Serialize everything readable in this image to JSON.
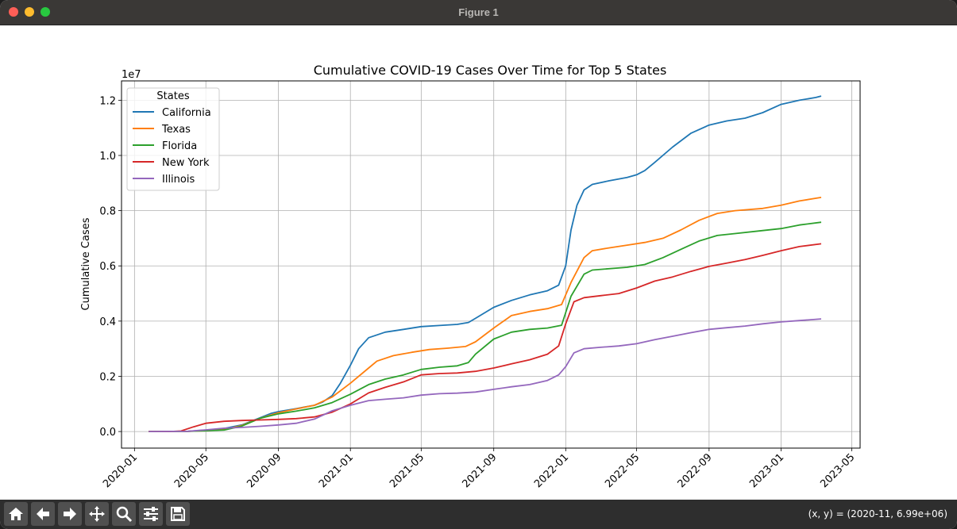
{
  "window": {
    "title": "Figure 1",
    "coords_readout": "(x, y) = (2020-11, 6.99e+06)"
  },
  "toolbar": {
    "buttons": [
      "home-icon",
      "back-icon",
      "forward-icon",
      "pan-icon",
      "zoom-icon",
      "configure-subplots-icon",
      "save-icon"
    ]
  },
  "chart_data": {
    "type": "line",
    "title": "Cumulative COVID-19 Cases Over Time for Top 5 States",
    "xlabel": "",
    "ylabel": "Cumulative Cases",
    "y_offset_label": "1e7",
    "xlim": [
      "2019-12-10",
      "2023-05-15"
    ],
    "ylim": [
      -600000,
      12700000
    ],
    "grid": true,
    "legend": {
      "title": "States",
      "placement": "top-left"
    },
    "x_ticks": [
      "2020-01",
      "2020-05",
      "2020-09",
      "2021-01",
      "2021-05",
      "2021-09",
      "2022-01",
      "2022-05",
      "2022-09",
      "2023-01",
      "2023-05"
    ],
    "y_ticks": [
      {
        "value": 0,
        "label": "0.0"
      },
      {
        "value": 2000000,
        "label": "0.2"
      },
      {
        "value": 4000000,
        "label": "0.4"
      },
      {
        "value": 6000000,
        "label": "0.6"
      },
      {
        "value": 8000000,
        "label": "0.8"
      },
      {
        "value": 10000000,
        "label": "1.0"
      },
      {
        "value": 12000000,
        "label": "1.2"
      }
    ],
    "series": [
      {
        "name": "California",
        "color": "#1f77b4",
        "points": [
          [
            "2020-01-25",
            0
          ],
          [
            "2020-04-01",
            8000
          ],
          [
            "2020-05-01",
            50000
          ],
          [
            "2020-06-01",
            110000
          ],
          [
            "2020-07-01",
            240000
          ],
          [
            "2020-08-01",
            500000
          ],
          [
            "2020-08-20",
            660000
          ],
          [
            "2020-09-01",
            720000
          ],
          [
            "2020-10-01",
            830000
          ],
          [
            "2020-11-01",
            950000
          ],
          [
            "2020-11-15",
            1070000
          ],
          [
            "2020-12-01",
            1300000
          ],
          [
            "2020-12-15",
            1750000
          ],
          [
            "2021-01-01",
            2400000
          ],
          [
            "2021-01-15",
            3000000
          ],
          [
            "2021-02-01",
            3400000
          ],
          [
            "2021-03-01",
            3600000
          ],
          [
            "2021-04-01",
            3700000
          ],
          [
            "2021-05-01",
            3800000
          ],
          [
            "2021-06-01",
            3840000
          ],
          [
            "2021-07-01",
            3880000
          ],
          [
            "2021-07-20",
            3950000
          ],
          [
            "2021-08-01",
            4100000
          ],
          [
            "2021-09-01",
            4500000
          ],
          [
            "2021-10-01",
            4750000
          ],
          [
            "2021-11-01",
            4950000
          ],
          [
            "2021-12-01",
            5100000
          ],
          [
            "2021-12-20",
            5300000
          ],
          [
            "2022-01-01",
            6000000
          ],
          [
            "2022-01-10",
            7300000
          ],
          [
            "2022-01-20",
            8200000
          ],
          [
            "2022-02-01",
            8750000
          ],
          [
            "2022-02-15",
            8950000
          ],
          [
            "2022-03-15",
            9080000
          ],
          [
            "2022-04-15",
            9200000
          ],
          [
            "2022-05-01",
            9300000
          ],
          [
            "2022-05-15",
            9450000
          ],
          [
            "2022-06-01",
            9750000
          ],
          [
            "2022-07-01",
            10300000
          ],
          [
            "2022-08-01",
            10800000
          ],
          [
            "2022-09-01",
            11100000
          ],
          [
            "2022-10-01",
            11250000
          ],
          [
            "2022-11-01",
            11350000
          ],
          [
            "2022-12-01",
            11550000
          ],
          [
            "2023-01-01",
            11850000
          ],
          [
            "2023-02-01",
            12000000
          ],
          [
            "2023-03-01",
            12100000
          ],
          [
            "2023-03-10",
            12150000
          ]
        ]
      },
      {
        "name": "Texas",
        "color": "#ff7f0e",
        "points": [
          [
            "2020-01-25",
            0
          ],
          [
            "2020-04-01",
            5000
          ],
          [
            "2020-05-01",
            30000
          ],
          [
            "2020-06-01",
            70000
          ],
          [
            "2020-07-01",
            220000
          ],
          [
            "2020-08-01",
            480000
          ],
          [
            "2020-09-01",
            680000
          ],
          [
            "2020-10-01",
            820000
          ],
          [
            "2020-11-01",
            950000
          ],
          [
            "2020-12-01",
            1250000
          ],
          [
            "2021-01-01",
            1750000
          ],
          [
            "2021-02-01",
            2300000
          ],
          [
            "2021-02-15",
            2550000
          ],
          [
            "2021-03-15",
            2750000
          ],
          [
            "2021-04-15",
            2870000
          ],
          [
            "2021-05-15",
            2970000
          ],
          [
            "2021-06-15",
            3020000
          ],
          [
            "2021-07-15",
            3080000
          ],
          [
            "2021-08-01",
            3250000
          ],
          [
            "2021-09-01",
            3750000
          ],
          [
            "2021-10-01",
            4200000
          ],
          [
            "2021-11-01",
            4350000
          ],
          [
            "2021-12-01",
            4450000
          ],
          [
            "2021-12-25",
            4600000
          ],
          [
            "2022-01-10",
            5400000
          ],
          [
            "2022-02-01",
            6300000
          ],
          [
            "2022-02-15",
            6550000
          ],
          [
            "2022-03-15",
            6650000
          ],
          [
            "2022-04-15",
            6750000
          ],
          [
            "2022-05-15",
            6850000
          ],
          [
            "2022-06-15",
            7000000
          ],
          [
            "2022-07-15",
            7300000
          ],
          [
            "2022-08-15",
            7650000
          ],
          [
            "2022-09-15",
            7900000
          ],
          [
            "2022-10-15",
            8000000
          ],
          [
            "2022-12-01",
            8080000
          ],
          [
            "2023-01-01",
            8200000
          ],
          [
            "2023-02-01",
            8350000
          ],
          [
            "2023-03-10",
            8480000
          ]
        ]
      },
      {
        "name": "Florida",
        "color": "#2ca02c",
        "points": [
          [
            "2020-01-25",
            0
          ],
          [
            "2020-04-01",
            5000
          ],
          [
            "2020-05-01",
            30000
          ],
          [
            "2020-06-01",
            55000
          ],
          [
            "2020-07-01",
            200000
          ],
          [
            "2020-08-01",
            480000
          ],
          [
            "2020-09-01",
            640000
          ],
          [
            "2020-10-01",
            740000
          ],
          [
            "2020-11-01",
            860000
          ],
          [
            "2020-12-01",
            1050000
          ],
          [
            "2021-01-01",
            1350000
          ],
          [
            "2021-02-01",
            1700000
          ],
          [
            "2021-03-01",
            1900000
          ],
          [
            "2021-04-01",
            2050000
          ],
          [
            "2021-05-01",
            2250000
          ],
          [
            "2021-06-01",
            2330000
          ],
          [
            "2021-07-01",
            2380000
          ],
          [
            "2021-07-20",
            2500000
          ],
          [
            "2021-08-01",
            2800000
          ],
          [
            "2021-09-01",
            3350000
          ],
          [
            "2021-10-01",
            3600000
          ],
          [
            "2021-11-01",
            3700000
          ],
          [
            "2021-12-01",
            3750000
          ],
          [
            "2021-12-25",
            3850000
          ],
          [
            "2022-01-10",
            4900000
          ],
          [
            "2022-02-01",
            5700000
          ],
          [
            "2022-02-15",
            5850000
          ],
          [
            "2022-04-15",
            5950000
          ],
          [
            "2022-05-15",
            6050000
          ],
          [
            "2022-06-15",
            6300000
          ],
          [
            "2022-07-15",
            6600000
          ],
          [
            "2022-08-15",
            6900000
          ],
          [
            "2022-09-15",
            7100000
          ],
          [
            "2022-10-15",
            7170000
          ],
          [
            "2022-12-01",
            7280000
          ],
          [
            "2023-01-01",
            7350000
          ],
          [
            "2023-02-01",
            7480000
          ],
          [
            "2023-03-10",
            7580000
          ]
        ]
      },
      {
        "name": "New York",
        "color": "#d62728",
        "points": [
          [
            "2020-01-25",
            0
          ],
          [
            "2020-03-01",
            0
          ],
          [
            "2020-03-20",
            20000
          ],
          [
            "2020-04-10",
            170000
          ],
          [
            "2020-05-01",
            300000
          ],
          [
            "2020-06-01",
            370000
          ],
          [
            "2020-07-01",
            400000
          ],
          [
            "2020-08-01",
            420000
          ],
          [
            "2020-09-01",
            440000
          ],
          [
            "2020-10-01",
            470000
          ],
          [
            "2020-11-01",
            530000
          ],
          [
            "2020-12-01",
            700000
          ],
          [
            "2021-01-01",
            1000000
          ],
          [
            "2021-02-01",
            1400000
          ],
          [
            "2021-03-01",
            1600000
          ],
          [
            "2021-04-01",
            1800000
          ],
          [
            "2021-05-01",
            2050000
          ],
          [
            "2021-06-01",
            2100000
          ],
          [
            "2021-07-01",
            2120000
          ],
          [
            "2021-08-01",
            2180000
          ],
          [
            "2021-09-01",
            2300000
          ],
          [
            "2021-10-01",
            2450000
          ],
          [
            "2021-11-01",
            2600000
          ],
          [
            "2021-12-01",
            2800000
          ],
          [
            "2021-12-20",
            3100000
          ],
          [
            "2022-01-01",
            3900000
          ],
          [
            "2022-01-15",
            4700000
          ],
          [
            "2022-02-01",
            4850000
          ],
          [
            "2022-03-01",
            4920000
          ],
          [
            "2022-04-01",
            5000000
          ],
          [
            "2022-05-01",
            5200000
          ],
          [
            "2022-06-01",
            5450000
          ],
          [
            "2022-07-01",
            5600000
          ],
          [
            "2022-08-01",
            5800000
          ],
          [
            "2022-09-01",
            5980000
          ],
          [
            "2022-10-01",
            6100000
          ],
          [
            "2022-11-01",
            6230000
          ],
          [
            "2022-12-01",
            6380000
          ],
          [
            "2023-01-01",
            6550000
          ],
          [
            "2023-02-01",
            6700000
          ],
          [
            "2023-03-10",
            6800000
          ]
        ]
      },
      {
        "name": "Illinois",
        "color": "#9467bd",
        "points": [
          [
            "2020-01-25",
            0
          ],
          [
            "2020-04-01",
            10000
          ],
          [
            "2020-05-01",
            60000
          ],
          [
            "2020-06-01",
            120000
          ],
          [
            "2020-07-01",
            150000
          ],
          [
            "2020-08-01",
            190000
          ],
          [
            "2020-09-01",
            240000
          ],
          [
            "2020-10-01",
            300000
          ],
          [
            "2020-11-01",
            450000
          ],
          [
            "2020-12-01",
            750000
          ],
          [
            "2021-01-01",
            950000
          ],
          [
            "2021-02-01",
            1120000
          ],
          [
            "2021-03-01",
            1170000
          ],
          [
            "2021-04-01",
            1220000
          ],
          [
            "2021-05-01",
            1320000
          ],
          [
            "2021-06-01",
            1370000
          ],
          [
            "2021-07-01",
            1390000
          ],
          [
            "2021-08-01",
            1430000
          ],
          [
            "2021-09-01",
            1530000
          ],
          [
            "2021-10-01",
            1620000
          ],
          [
            "2021-11-01",
            1700000
          ],
          [
            "2021-12-01",
            1850000
          ],
          [
            "2021-12-20",
            2050000
          ],
          [
            "2022-01-01",
            2350000
          ],
          [
            "2022-01-15",
            2850000
          ],
          [
            "2022-02-01",
            3000000
          ],
          [
            "2022-03-01",
            3050000
          ],
          [
            "2022-04-01",
            3100000
          ],
          [
            "2022-05-01",
            3180000
          ],
          [
            "2022-06-01",
            3330000
          ],
          [
            "2022-07-01",
            3450000
          ],
          [
            "2022-08-01",
            3580000
          ],
          [
            "2022-09-01",
            3700000
          ],
          [
            "2022-10-01",
            3760000
          ],
          [
            "2022-11-01",
            3820000
          ],
          [
            "2022-12-01",
            3900000
          ],
          [
            "2023-01-01",
            3970000
          ],
          [
            "2023-02-01",
            4020000
          ],
          [
            "2023-03-10",
            4080000
          ]
        ]
      }
    ]
  }
}
